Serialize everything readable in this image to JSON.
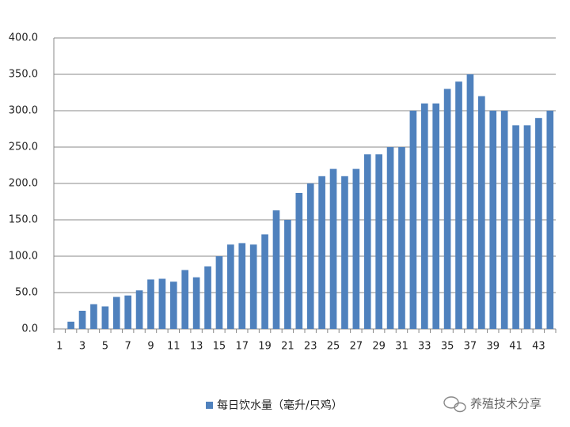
{
  "chart_data": {
    "type": "bar",
    "categories": [
      "1",
      null,
      "3",
      null,
      "5",
      null,
      "7",
      null,
      "9",
      null,
      "11",
      null,
      "13",
      null,
      "15",
      null,
      "17",
      null,
      "19",
      null,
      "21",
      null,
      "23",
      null,
      "25",
      null,
      "27",
      null,
      "29",
      null,
      "31",
      null,
      "33",
      null,
      "35",
      null,
      "37",
      null,
      "39",
      null,
      "41",
      null,
      "43",
      null
    ],
    "series": [
      {
        "name": "每日饮水量（毫升/只鸡）",
        "color": "#4f81bd",
        "values": [
          0,
          10,
          25,
          34,
          31,
          44,
          46,
          53,
          68,
          69,
          65,
          81,
          71,
          86,
          100,
          116,
          118,
          116,
          130,
          163,
          150,
          187,
          200,
          210,
          220,
          210,
          220,
          240,
          240,
          250,
          250,
          300,
          310,
          310,
          330,
          340,
          350,
          320,
          300,
          300,
          280,
          280,
          290,
          300
        ]
      }
    ],
    "ylim": [
      0,
      400
    ],
    "yticks": [
      {
        "value": 0,
        "label": "0.0"
      },
      {
        "value": 50,
        "label": "50.0"
      },
      {
        "value": 100,
        "label": "100.0"
      },
      {
        "value": 150,
        "label": "150.0"
      },
      {
        "value": 200,
        "label": "200.0"
      },
      {
        "value": 250,
        "label": "250.0"
      },
      {
        "value": 300,
        "label": "300.0"
      },
      {
        "value": 350,
        "label": "350.0"
      },
      {
        "value": 400,
        "label": "400.0"
      }
    ],
    "grid": true,
    "legend": "bottom",
    "watermark": "养殖技术分享"
  }
}
